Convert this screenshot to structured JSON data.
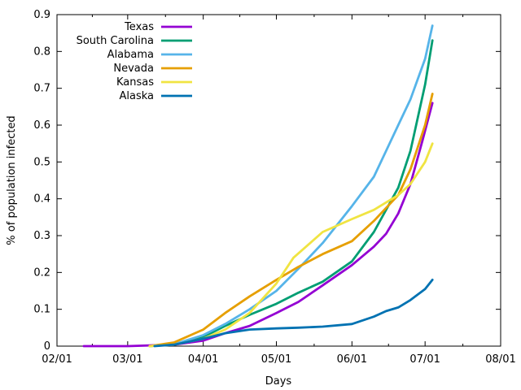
{
  "chart_data": {
    "type": "line",
    "xlabel": "Days",
    "ylabel": "% of population infected",
    "x_ticks": [
      "02/01",
      "03/01",
      "04/01",
      "05/01",
      "06/01",
      "07/01",
      "08/01"
    ],
    "y_ticks": [
      "0",
      "0.1",
      "0.2",
      "0.3",
      "0.4",
      "0.5",
      "0.6",
      "0.7",
      "0.8",
      "0.9"
    ],
    "xlim": [
      "2020-02-01",
      "2020-08-01"
    ],
    "ylim": [
      0,
      0.9
    ],
    "grid": false,
    "legend_position": "top-left",
    "series": [
      {
        "name": "Texas",
        "color": "#9400d3",
        "points": [
          [
            "2020-02-12",
            0
          ],
          [
            "2020-03-01",
            0
          ],
          [
            "2020-03-20",
            0.004
          ],
          [
            "2020-04-01",
            0.015
          ],
          [
            "2020-04-10",
            0.035
          ],
          [
            "2020-04-20",
            0.055
          ],
          [
            "2020-05-01",
            0.09
          ],
          [
            "2020-05-10",
            0.12
          ],
          [
            "2020-05-20",
            0.165
          ],
          [
            "2020-06-01",
            0.22
          ],
          [
            "2020-06-10",
            0.27
          ],
          [
            "2020-06-15",
            0.305
          ],
          [
            "2020-06-20",
            0.36
          ],
          [
            "2020-06-25",
            0.44
          ],
          [
            "2020-06-30",
            0.56
          ],
          [
            "2020-07-04",
            0.66
          ]
        ]
      },
      {
        "name": "South Carolina",
        "color": "#009e73",
        "points": [
          [
            "2020-03-10",
            0
          ],
          [
            "2020-03-20",
            0.005
          ],
          [
            "2020-04-01",
            0.025
          ],
          [
            "2020-04-10",
            0.055
          ],
          [
            "2020-04-20",
            0.085
          ],
          [
            "2020-05-01",
            0.115
          ],
          [
            "2020-05-10",
            0.145
          ],
          [
            "2020-05-20",
            0.175
          ],
          [
            "2020-06-01",
            0.23
          ],
          [
            "2020-06-10",
            0.31
          ],
          [
            "2020-06-20",
            0.43
          ],
          [
            "2020-06-25",
            0.53
          ],
          [
            "2020-07-01",
            0.71
          ],
          [
            "2020-07-04",
            0.83
          ]
        ]
      },
      {
        "name": "Alabama",
        "color": "#56b4e9",
        "points": [
          [
            "2020-03-10",
            0
          ],
          [
            "2020-03-20",
            0.005
          ],
          [
            "2020-04-01",
            0.03
          ],
          [
            "2020-04-10",
            0.06
          ],
          [
            "2020-04-20",
            0.1
          ],
          [
            "2020-05-01",
            0.15
          ],
          [
            "2020-05-10",
            0.21
          ],
          [
            "2020-05-20",
            0.28
          ],
          [
            "2020-06-01",
            0.38
          ],
          [
            "2020-06-10",
            0.46
          ],
          [
            "2020-06-15",
            0.53
          ],
          [
            "2020-06-20",
            0.6
          ],
          [
            "2020-06-25",
            0.67
          ],
          [
            "2020-07-01",
            0.78
          ],
          [
            "2020-07-04",
            0.87
          ]
        ]
      },
      {
        "name": "Nevada",
        "color": "#e69f00",
        "points": [
          [
            "2020-03-10",
            0
          ],
          [
            "2020-03-20",
            0.01
          ],
          [
            "2020-04-01",
            0.045
          ],
          [
            "2020-04-10",
            0.09
          ],
          [
            "2020-04-20",
            0.135
          ],
          [
            "2020-05-01",
            0.18
          ],
          [
            "2020-05-10",
            0.215
          ],
          [
            "2020-05-20",
            0.25
          ],
          [
            "2020-06-01",
            0.285
          ],
          [
            "2020-06-10",
            0.34
          ],
          [
            "2020-06-20",
            0.41
          ],
          [
            "2020-06-25",
            0.48
          ],
          [
            "2020-07-01",
            0.6
          ],
          [
            "2020-07-04",
            0.685
          ]
        ]
      },
      {
        "name": "Kansas",
        "color": "#f0e442",
        "points": [
          [
            "2020-03-10",
            0
          ],
          [
            "2020-03-20",
            0.004
          ],
          [
            "2020-04-01",
            0.02
          ],
          [
            "2020-04-10",
            0.045
          ],
          [
            "2020-04-20",
            0.09
          ],
          [
            "2020-05-01",
            0.17
          ],
          [
            "2020-05-08",
            0.24
          ],
          [
            "2020-05-20",
            0.31
          ],
          [
            "2020-06-01",
            0.345
          ],
          [
            "2020-06-10",
            0.37
          ],
          [
            "2020-06-20",
            0.41
          ],
          [
            "2020-06-25",
            0.44
          ],
          [
            "2020-07-01",
            0.5
          ],
          [
            "2020-07-04",
            0.55
          ]
        ]
      },
      {
        "name": "Alaska",
        "color": "#0072b2",
        "points": [
          [
            "2020-03-12",
            0
          ],
          [
            "2020-03-20",
            0.004
          ],
          [
            "2020-04-01",
            0.02
          ],
          [
            "2020-04-10",
            0.035
          ],
          [
            "2020-04-20",
            0.045
          ],
          [
            "2020-05-01",
            0.048
          ],
          [
            "2020-05-10",
            0.05
          ],
          [
            "2020-05-20",
            0.053
          ],
          [
            "2020-06-01",
            0.06
          ],
          [
            "2020-06-10",
            0.08
          ],
          [
            "2020-06-15",
            0.095
          ],
          [
            "2020-06-20",
            0.105
          ],
          [
            "2020-06-25",
            0.125
          ],
          [
            "2020-07-01",
            0.155
          ],
          [
            "2020-07-04",
            0.18
          ]
        ]
      }
    ]
  }
}
